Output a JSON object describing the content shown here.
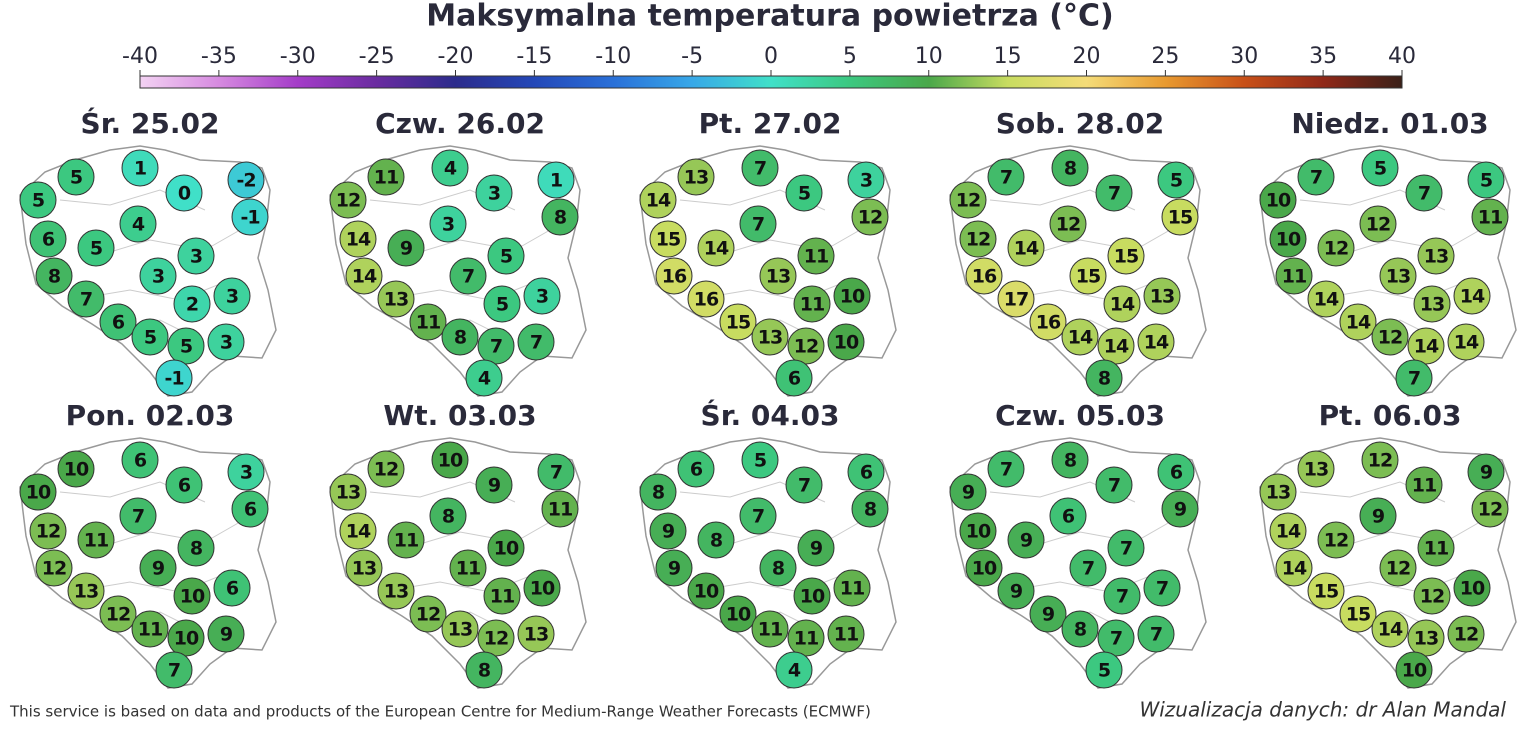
{
  "title": "Maksymalna temperatura powietrza (°C)",
  "colorbar": {
    "ticks": [
      -40,
      -35,
      -30,
      -25,
      -20,
      -15,
      -10,
      -5,
      0,
      5,
      10,
      15,
      20,
      25,
      30,
      35,
      40
    ],
    "colors": [
      "#f3d2f3",
      "#d68ae0",
      "#a43cc8",
      "#6a2ca0",
      "#2c2c8c",
      "#2448b8",
      "#2a70d8",
      "#38a8e8",
      "#40e0c8",
      "#3cc880",
      "#4aa84a",
      "#c8dc60",
      "#f5dc78",
      "#e89a30",
      "#c85018",
      "#902818",
      "#3a2018"
    ]
  },
  "panels": [
    {
      "label": "Śr. 25.02",
      "values": [
        5,
        1,
        0,
        -2,
        5,
        4,
        -1,
        6,
        5,
        3,
        3,
        8,
        3,
        2,
        7,
        6,
        5,
        3,
        5,
        -1
      ]
    },
    {
      "label": "Czw. 26.02",
      "values": [
        11,
        4,
        3,
        1,
        12,
        3,
        8,
        14,
        9,
        5,
        7,
        14,
        3,
        5,
        13,
        11,
        8,
        7,
        7,
        4
      ]
    },
    {
      "label": "Pt. 27.02",
      "values": [
        13,
        7,
        5,
        3,
        14,
        7,
        12,
        15,
        14,
        11,
        13,
        16,
        10,
        11,
        16,
        15,
        13,
        10,
        12,
        6
      ]
    },
    {
      "label": "Sob. 28.02",
      "values": [
        7,
        8,
        7,
        5,
        12,
        12,
        15,
        12,
        14,
        15,
        15,
        16,
        13,
        14,
        17,
        16,
        14,
        14,
        14,
        8
      ]
    },
    {
      "label": "Niedz. 01.03",
      "values": [
        7,
        5,
        7,
        5,
        10,
        12,
        11,
        10,
        12,
        13,
        13,
        11,
        14,
        13,
        14,
        14,
        12,
        14,
        14,
        7
      ]
    },
    {
      "label": "Pon. 02.03",
      "values": [
        10,
        6,
        6,
        3,
        10,
        7,
        6,
        12,
        11,
        8,
        9,
        12,
        6,
        10,
        13,
        12,
        11,
        9,
        10,
        7
      ]
    },
    {
      "label": "Wt. 03.03",
      "values": [
        12,
        10,
        9,
        7,
        13,
        8,
        11,
        14,
        11,
        10,
        11,
        13,
        10,
        11,
        13,
        12,
        13,
        13,
        12,
        8
      ]
    },
    {
      "label": "Śr. 04.03",
      "values": [
        6,
        5,
        7,
        6,
        8,
        7,
        8,
        9,
        8,
        9,
        8,
        9,
        11,
        10,
        10,
        10,
        11,
        11,
        11,
        4
      ]
    },
    {
      "label": "Czw. 05.03",
      "values": [
        7,
        8,
        7,
        6,
        9,
        6,
        9,
        10,
        9,
        7,
        7,
        10,
        7,
        7,
        9,
        9,
        8,
        7,
        7,
        5
      ]
    },
    {
      "label": "Pt. 06.03",
      "values": [
        13,
        12,
        11,
        9,
        13,
        9,
        12,
        14,
        12,
        11,
        12,
        14,
        10,
        12,
        15,
        15,
        14,
        12,
        13,
        10
      ]
    }
  ],
  "footer": {
    "source": "This service is based on data and products of the European Centre for Medium-Range Weather Forecasts (ECMWF)",
    "credit": "Wizualizacja danych: dr Alan Mandal"
  }
}
